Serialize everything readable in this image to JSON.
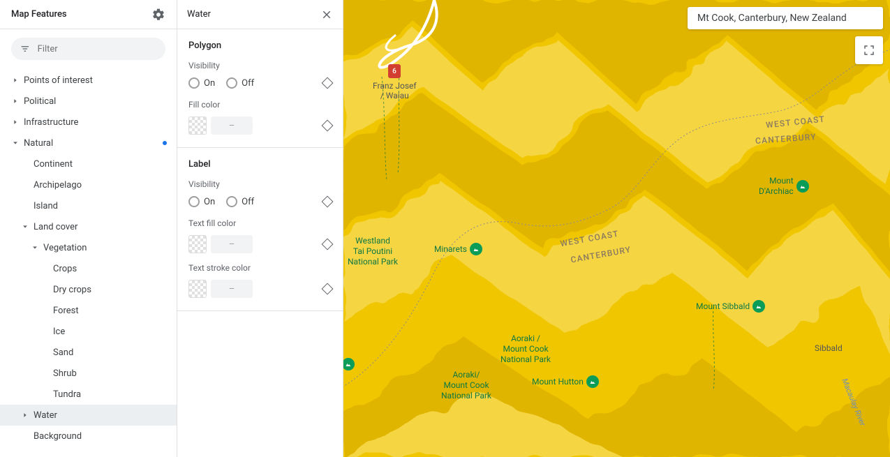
{
  "sidebar": {
    "title": "Map Features",
    "filter_placeholder": "Filter",
    "items": [
      {
        "label": "Points of interest",
        "expanded": false,
        "indent": 0,
        "caret": "right",
        "dot": false
      },
      {
        "label": "Political",
        "expanded": false,
        "indent": 0,
        "caret": "right",
        "dot": false
      },
      {
        "label": "Infrastructure",
        "expanded": false,
        "indent": 0,
        "caret": "right",
        "dot": false
      },
      {
        "label": "Natural",
        "expanded": true,
        "indent": 0,
        "caret": "down",
        "dot": true
      },
      {
        "label": "Continent",
        "indent": 1,
        "caret": "none",
        "dot": false
      },
      {
        "label": "Archipelago",
        "indent": 1,
        "caret": "none",
        "dot": false
      },
      {
        "label": "Island",
        "indent": 1,
        "caret": "none",
        "dot": false
      },
      {
        "label": "Land cover",
        "expanded": true,
        "indent": 1,
        "caret": "down",
        "dot": false
      },
      {
        "label": "Vegetation",
        "expanded": true,
        "indent": 2,
        "caret": "down",
        "dot": false
      },
      {
        "label": "Crops",
        "indent": 3,
        "caret": "none",
        "dot": false
      },
      {
        "label": "Dry crops",
        "indent": 3,
        "caret": "none",
        "dot": false
      },
      {
        "label": "Forest",
        "indent": 3,
        "caret": "none",
        "dot": false
      },
      {
        "label": "Ice",
        "indent": 3,
        "caret": "none",
        "dot": false
      },
      {
        "label": "Sand",
        "indent": 3,
        "caret": "none",
        "dot": false
      },
      {
        "label": "Shrub",
        "indent": 3,
        "caret": "none",
        "dot": false
      },
      {
        "label": "Tundra",
        "indent": 3,
        "caret": "none",
        "dot": false
      },
      {
        "label": "Water",
        "indent": 1,
        "caret": "right",
        "dot": false,
        "active": true
      },
      {
        "label": "Background",
        "indent": 1,
        "caret": "none",
        "dot": false
      }
    ]
  },
  "detail": {
    "title": "Water",
    "sections": [
      {
        "title": "Polygon",
        "props": [
          {
            "type": "visibility",
            "label": "Visibility",
            "on": "On",
            "off": "Off"
          },
          {
            "type": "color",
            "label": "Fill color",
            "value": "–"
          }
        ]
      },
      {
        "title": "Label",
        "props": [
          {
            "type": "visibility",
            "label": "Visibility",
            "on": "On",
            "off": "Off"
          },
          {
            "type": "color",
            "label": "Text fill color",
            "value": "–"
          },
          {
            "type": "color",
            "label": "Text stroke color",
            "value": "–"
          }
        ]
      }
    ]
  },
  "map": {
    "search_value": "Mt Cook, Canterbury, New Zealand",
    "terrain_base": "#f0c600",
    "terrain_shadow": "#d4a800",
    "terrain_highlight": "#fbe27a",
    "route_shield": "6",
    "labels": {
      "franz_josef": "Franz Josef\n/ Waiau",
      "westland": "Westland\nTai Poutini\nNational Park",
      "aoraki1": "Aoraki /\nMount Cook\nNational Park",
      "aoraki2": "Aoraki/\nMount Cook\nNational Park",
      "minarets": "Minarets",
      "darchiac": "Mount\nD'Archiac",
      "sibbald_peak": "Mount Sibbald",
      "hutton": "Mount Hutton",
      "sibbald": "Sibbald",
      "macaulay": "Macaulay River",
      "west_coast": "WEST COAST",
      "canterbury": "CANTERBURY"
    }
  }
}
